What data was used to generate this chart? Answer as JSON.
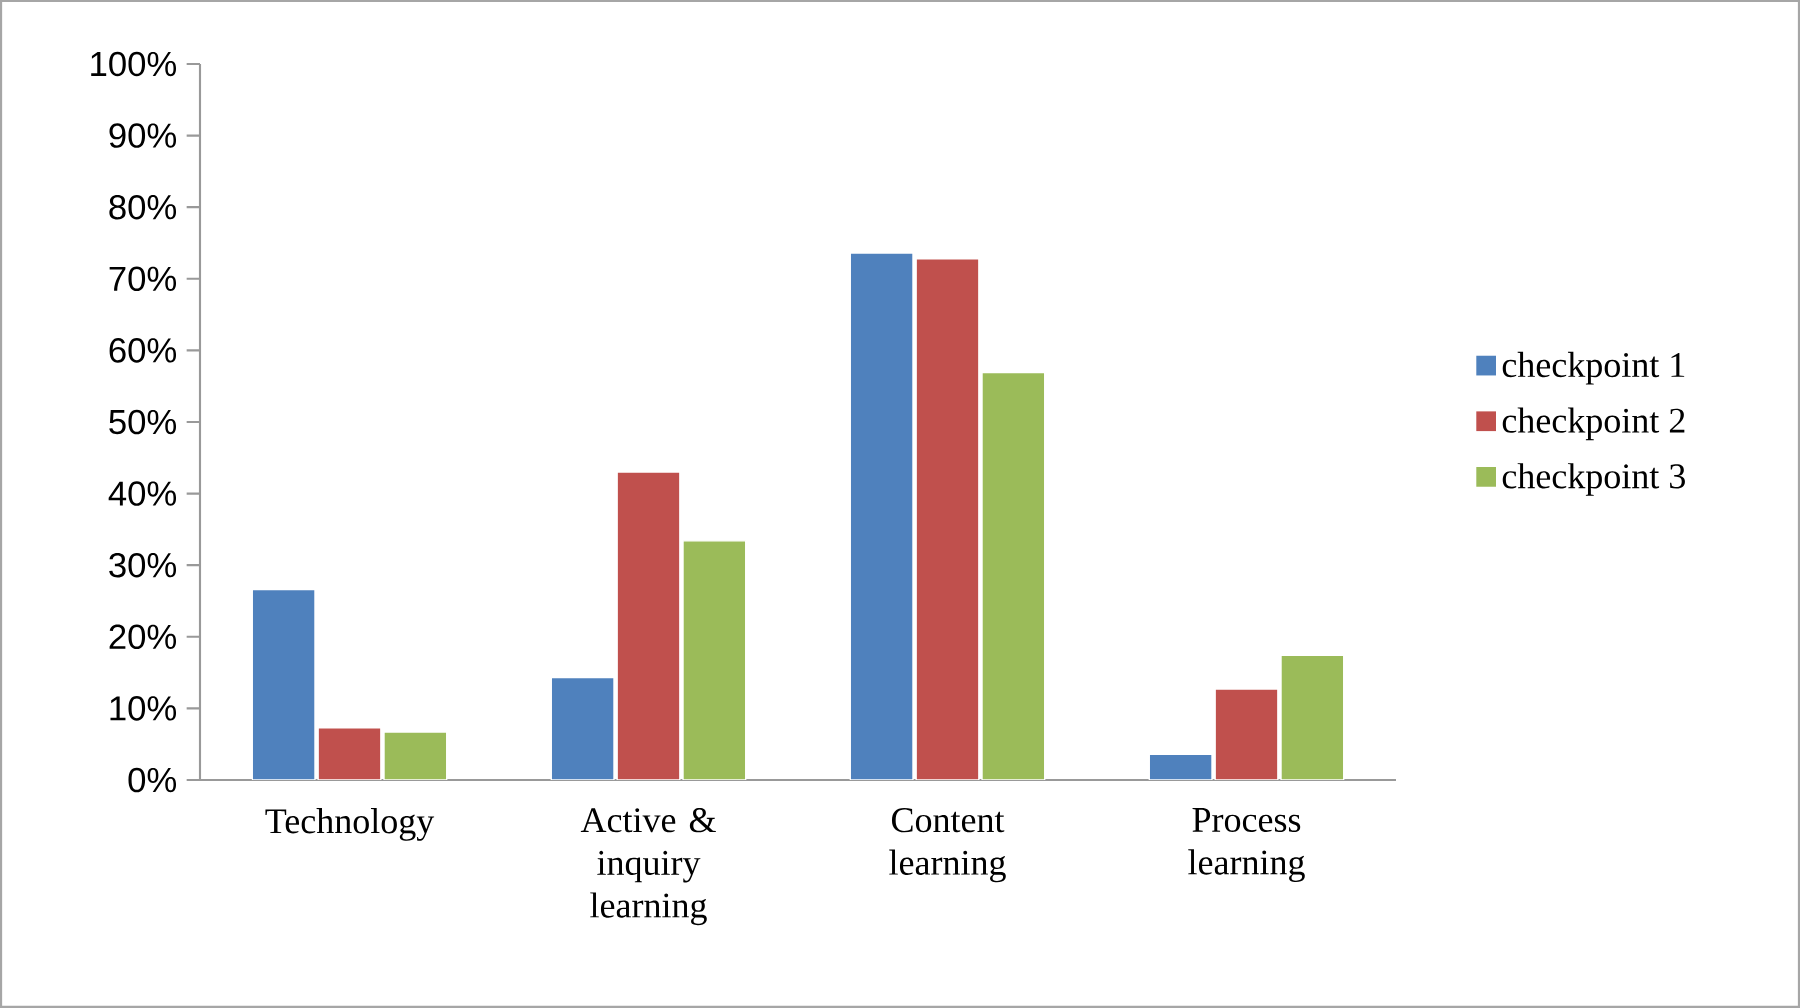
{
  "chart_data": {
    "type": "bar",
    "categories": [
      "Technology",
      "Active & inquiry learning",
      "Content learning",
      "Process learning"
    ],
    "series": [
      {
        "name": "checkpoint 1",
        "color": "#4f81bd",
        "values": [
          26.6,
          14.3,
          73.6,
          3.6
        ]
      },
      {
        "name": "checkpoint 2",
        "color": "#c0504d",
        "values": [
          7.3,
          43.0,
          72.8,
          12.7
        ]
      },
      {
        "name": "checkpoint 3",
        "color": "#9bbb59",
        "values": [
          6.7,
          33.4,
          56.9,
          17.4
        ]
      }
    ],
    "ylim": [
      0,
      100
    ],
    "yticks": [
      {
        "value": 0,
        "label": "0%"
      },
      {
        "value": 10,
        "label": "10%"
      },
      {
        "value": 20,
        "label": "20%"
      },
      {
        "value": 30,
        "label": "30%"
      },
      {
        "value": 40,
        "label": "40%"
      },
      {
        "value": 50,
        "label": "50%"
      },
      {
        "value": 60,
        "label": "60%"
      },
      {
        "value": 70,
        "label": "70%"
      },
      {
        "value": 80,
        "label": "80%"
      },
      {
        "value": 90,
        "label": "90%"
      },
      {
        "value": 100,
        "label": "100%"
      }
    ],
    "legend": "right"
  }
}
